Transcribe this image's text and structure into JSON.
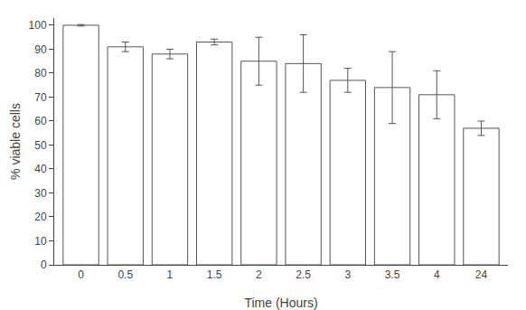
{
  "chart_data": {
    "type": "bar",
    "categories": [
      "0",
      "0.5",
      "1",
      "1.5",
      "2",
      "2.5",
      "3",
      "3.5",
      "4",
      "24"
    ],
    "values": [
      100,
      91,
      88,
      93,
      85,
      84,
      77,
      74,
      71,
      57
    ],
    "errors": [
      0.3,
      2.0,
      2.0,
      1.2,
      10.0,
      12.0,
      5.0,
      15.0,
      10.0,
      3.0
    ],
    "color": "#ffffff",
    "xlabel": "Time (Hours)",
    "ylabel": "% viable cells",
    "ylim": [
      0,
      103
    ],
    "yticks": [
      0,
      10,
      20,
      30,
      40,
      50,
      60,
      70,
      80,
      90,
      100
    ],
    "grid": false
  }
}
